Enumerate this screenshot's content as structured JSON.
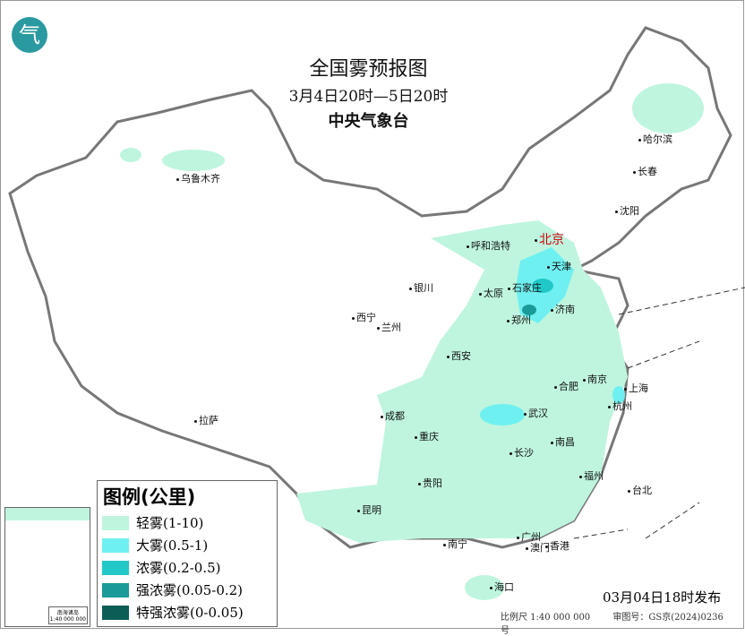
{
  "header": {
    "title": "全国雾预报图",
    "period": "3月4日20时—5日20时",
    "issuer": "中央气象台",
    "logo_icon": "cma-logo"
  },
  "legend": {
    "title": "图例(公里)",
    "items": [
      {
        "label": "轻雾(1-10)",
        "color": "#bff5df"
      },
      {
        "label": "大雾(0.5-1)",
        "color": "#6ff0f0"
      },
      {
        "label": "浓雾(0.2-0.5)",
        "color": "#22c8c8"
      },
      {
        "label": "强浓雾(0.05-0.2)",
        "color": "#1a9a98"
      },
      {
        "label": "特强浓雾(0-0.05)",
        "color": "#0b5e56"
      }
    ]
  },
  "cities": [
    "北京",
    "天津",
    "石家庄",
    "太原",
    "呼和浩特",
    "济南",
    "郑州",
    "西安",
    "银川",
    "兰州",
    "西宁",
    "乌鲁木齐",
    "拉萨",
    "成都",
    "重庆",
    "贵阳",
    "昆明",
    "南宁",
    "广州",
    "澳门",
    "香港",
    "海口",
    "长沙",
    "武汉",
    "南昌",
    "合肥",
    "南京",
    "上海",
    "杭州",
    "福州",
    "台北",
    "沈阳",
    "长春",
    "哈尔滨"
  ],
  "inset": {
    "caption": "南海诸岛",
    "scale": "1:40 000 000"
  },
  "footer": {
    "published": "03月04日18时发布",
    "scale": "比例尺 1:40 000 000",
    "map_number": "审图号：GS京(2024)0236号"
  }
}
